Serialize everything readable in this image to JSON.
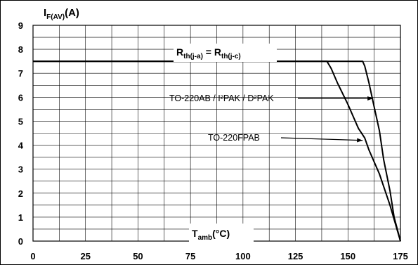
{
  "chart_data": {
    "type": "line",
    "ylabel": {
      "main": "I",
      "sub": "F(AV)",
      "tail": "(A)"
    },
    "xlabel": {
      "main": "T",
      "sub": "amb",
      "tail": "(°C)"
    },
    "condition_label": {
      "p1": "R",
      "s1": "th(j-a)",
      "mid": " = R",
      "s2": "th(j-c)"
    },
    "xlim": [
      0,
      175
    ],
    "ylim": [
      0,
      9
    ],
    "x_ticks": [
      0,
      25,
      50,
      75,
      100,
      125,
      150,
      175
    ],
    "y_ticks": [
      0,
      1,
      2,
      3,
      4,
      5,
      6,
      7,
      8,
      9
    ],
    "grid": true,
    "series": [
      {
        "x": [
          0,
          157,
          158,
          160,
          162,
          165,
          167,
          170,
          172,
          175
        ],
        "y": [
          7.5,
          7.5,
          7.3,
          6.6,
          5.8,
          4.6,
          3.4,
          2.1,
          1.0,
          0
        ]
      },
      {
        "x": [
          0,
          140,
          142,
          145,
          150,
          155,
          158,
          160,
          165,
          170,
          175
        ],
        "y": [
          7.5,
          7.5,
          7.2,
          6.6,
          5.7,
          4.7,
          4.3,
          3.8,
          2.8,
          1.5,
          0
        ]
      }
    ],
    "annotations": [
      {
        "text": "TO-220AB / I²PAK / D²PAK",
        "target": {
          "x": 162,
          "y": 5.95
        }
      },
      {
        "text": "TO-220FPAB",
        "target": {
          "x": 157,
          "y": 4.2
        }
      }
    ]
  }
}
